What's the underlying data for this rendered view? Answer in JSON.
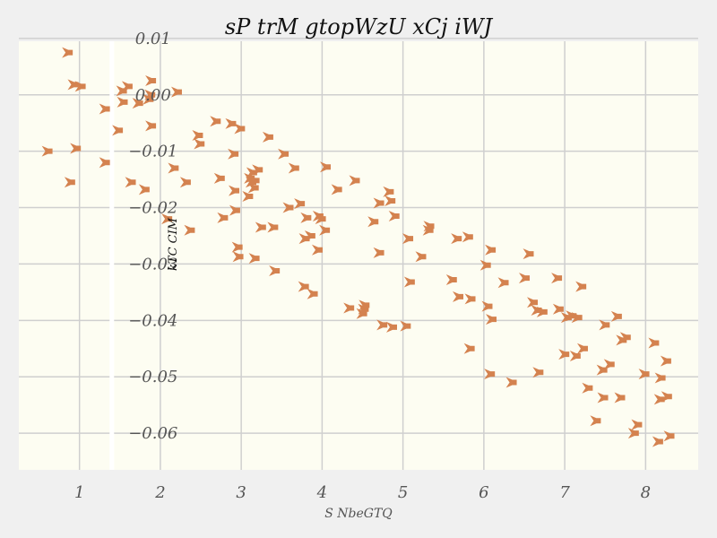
{
  "chart_data": {
    "type": "scatter",
    "title": "sP trM gtopWzU xCj iWJ",
    "xlabel": "S NbeGTQ",
    "ylabel": "kTC CIM",
    "xlim": [
      0.25,
      8.65
    ],
    "ylim": [
      -0.0665,
      0.0095
    ],
    "xticks": [
      1,
      2,
      3,
      4,
      5,
      6,
      7,
      8
    ],
    "yticks": [
      0.01,
      0.0,
      -0.01,
      -0.02,
      -0.03,
      -0.04,
      -0.05,
      -0.06
    ],
    "ytick_labels": [
      "0.01",
      "0.00",
      "−0.01",
      "−0.02",
      "−0.03",
      "−0.04",
      "−0.05",
      "−0.06"
    ],
    "yaxis_at_x": 1.4,
    "grid": true,
    "colors": {
      "marker": "#d4824f",
      "plot_bg": "#fdfdf2",
      "grid": "#cfcfcf",
      "page_bg": "#f0f0f0"
    },
    "marker": "pentagon-arrow",
    "points": [
      [
        0.6,
        -0.01
      ],
      [
        0.85,
        0.0075
      ],
      [
        0.88,
        -0.0155
      ],
      [
        0.92,
        0.0018
      ],
      [
        0.95,
        -0.0095
      ],
      [
        1.01,
        0.0015
      ],
      [
        1.31,
        -0.0025
      ],
      [
        1.31,
        -0.012
      ],
      [
        1.47,
        -0.0063
      ],
      [
        1.52,
        0.0007
      ],
      [
        1.53,
        -0.0013
      ],
      [
        1.59,
        0.0015
      ],
      [
        1.63,
        -0.0155
      ],
      [
        1.72,
        -0.0015
      ],
      [
        1.8,
        -0.0168
      ],
      [
        1.85,
        -0.0008
      ],
      [
        1.87,
        0.0
      ],
      [
        1.88,
        0.0025
      ],
      [
        1.88,
        -0.0055
      ],
      [
        2.08,
        -0.022
      ],
      [
        2.16,
        -0.013
      ],
      [
        2.2,
        0.0005
      ],
      [
        2.31,
        -0.0155
      ],
      [
        2.36,
        -0.024
      ],
      [
        2.46,
        -0.0072
      ],
      [
        2.48,
        -0.0087
      ],
      [
        2.68,
        -0.0047
      ],
      [
        2.73,
        -0.0148
      ],
      [
        2.77,
        -0.0218
      ],
      [
        2.87,
        -0.0051
      ],
      [
        2.9,
        -0.0105
      ],
      [
        2.91,
        -0.017
      ],
      [
        2.92,
        -0.0205
      ],
      [
        2.95,
        -0.027
      ],
      [
        2.96,
        -0.0287
      ],
      [
        2.98,
        -0.006
      ],
      [
        3.08,
        -0.018
      ],
      [
        3.1,
        -0.0148
      ],
      [
        3.12,
        -0.0155
      ],
      [
        3.13,
        -0.0138
      ],
      [
        3.15,
        -0.0165
      ],
      [
        3.16,
        -0.0152
      ],
      [
        3.16,
        -0.029
      ],
      [
        3.2,
        -0.0133
      ],
      [
        3.24,
        -0.0235
      ],
      [
        3.33,
        -0.0075
      ],
      [
        3.39,
        -0.0235
      ],
      [
        3.41,
        -0.0312
      ],
      [
        3.52,
        -0.0105
      ],
      [
        3.58,
        -0.02
      ],
      [
        3.65,
        -0.013
      ],
      [
        3.72,
        -0.0193
      ],
      [
        3.77,
        -0.034
      ],
      [
        3.78,
        -0.0255
      ],
      [
        3.8,
        -0.0218
      ],
      [
        3.85,
        -0.025
      ],
      [
        3.88,
        -0.0353
      ],
      [
        3.94,
        -0.0275
      ],
      [
        3.95,
        -0.0215
      ],
      [
        3.98,
        -0.022
      ],
      [
        4.03,
        -0.024
      ],
      [
        4.04,
        -0.0128
      ],
      [
        4.18,
        -0.0168
      ],
      [
        4.33,
        -0.0378
      ],
      [
        4.4,
        -0.0152
      ],
      [
        4.49,
        -0.0388
      ],
      [
        4.51,
        -0.038
      ],
      [
        4.52,
        -0.0373
      ],
      [
        4.63,
        -0.0225
      ],
      [
        4.7,
        -0.0192
      ],
      [
        4.7,
        -0.028
      ],
      [
        4.74,
        -0.0408
      ],
      [
        4.82,
        -0.0172
      ],
      [
        4.84,
        -0.0188
      ],
      [
        4.86,
        -0.0412
      ],
      [
        4.89,
        -0.0215
      ],
      [
        5.03,
        -0.041
      ],
      [
        5.06,
        -0.0255
      ],
      [
        5.08,
        -0.0332
      ],
      [
        5.22,
        -0.0287
      ],
      [
        5.31,
        -0.024
      ],
      [
        5.32,
        -0.0233
      ],
      [
        5.6,
        -0.0328
      ],
      [
        5.66,
        -0.0255
      ],
      [
        5.68,
        -0.0358
      ],
      [
        5.8,
        -0.0252
      ],
      [
        5.82,
        -0.045
      ],
      [
        5.83,
        -0.0362
      ],
      [
        6.02,
        -0.0302
      ],
      [
        6.04,
        -0.0375
      ],
      [
        6.07,
        -0.0495
      ],
      [
        6.08,
        -0.0275
      ],
      [
        6.09,
        -0.0398
      ],
      [
        6.24,
        -0.0333
      ],
      [
        6.34,
        -0.051
      ],
      [
        6.5,
        -0.0325
      ],
      [
        6.55,
        -0.0282
      ],
      [
        6.6,
        -0.0368
      ],
      [
        6.65,
        -0.0382
      ],
      [
        6.67,
        -0.0492
      ],
      [
        6.72,
        -0.0385
      ],
      [
        6.9,
        -0.0325
      ],
      [
        6.92,
        -0.038
      ],
      [
        6.99,
        -0.046
      ],
      [
        7.02,
        -0.0395
      ],
      [
        7.08,
        -0.0392
      ],
      [
        7.13,
        -0.0463
      ],
      [
        7.15,
        -0.0395
      ],
      [
        7.2,
        -0.034
      ],
      [
        7.22,
        -0.045
      ],
      [
        7.28,
        -0.052
      ],
      [
        7.38,
        -0.0578
      ],
      [
        7.46,
        -0.0488
      ],
      [
        7.47,
        -0.0537
      ],
      [
        7.49,
        -0.0408
      ],
      [
        7.55,
        -0.0478
      ],
      [
        7.64,
        -0.0393
      ],
      [
        7.68,
        -0.0537
      ],
      [
        7.7,
        -0.0435
      ],
      [
        7.75,
        -0.043
      ],
      [
        7.85,
        -0.06
      ],
      [
        7.89,
        -0.0585
      ],
      [
        7.98,
        -0.0495
      ],
      [
        8.1,
        -0.044
      ],
      [
        8.15,
        -0.0615
      ],
      [
        8.17,
        -0.054
      ],
      [
        8.18,
        -0.0502
      ],
      [
        8.25,
        -0.0472
      ],
      [
        8.26,
        -0.0535
      ],
      [
        8.29,
        -0.0605
      ]
    ]
  }
}
